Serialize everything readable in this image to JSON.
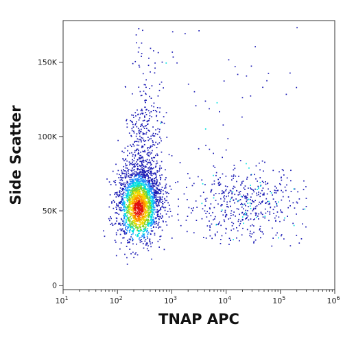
{
  "chart_data": {
    "type": "scatter",
    "subtype": "flow-cytometry density dot plot",
    "xlabel": "TNAP APC",
    "ylabel": "Side Scatter",
    "x_scale": "log",
    "y_scale": "linear",
    "xlim": [
      10,
      1000000
    ],
    "ylim": [
      -3000,
      178000
    ],
    "x_tick_values": [
      10,
      100,
      1000,
      10000,
      100000,
      1000000
    ],
    "x_tick_labels": [
      {
        "base": "10",
        "exp": "1"
      },
      {
        "base": "10",
        "exp": "2"
      },
      {
        "base": "10",
        "exp": "3"
      },
      {
        "base": "10",
        "exp": "4"
      },
      {
        "base": "10",
        "exp": "5"
      },
      {
        "base": "10",
        "exp": "6"
      }
    ],
    "y_tick_values": [
      0,
      50000,
      100000,
      150000
    ],
    "y_tick_labels": [
      "0",
      "50K",
      "100K",
      "150K"
    ],
    "grid": false,
    "legend": "none",
    "density_colors": [
      "#1a1ab4",
      "#1e90ff",
      "#00e0e0",
      "#7cd62a",
      "#f0d800",
      "#ff8c00",
      "#e01010"
    ],
    "populations": [
      {
        "center_x": 250,
        "center_y": 55000,
        "share": 0.84,
        "spread": "dense, extends upward toward 150K"
      },
      {
        "center_x": 20000,
        "center_y": 55000,
        "share": 0.16,
        "spread": "sparse, 1000 to 200000 on x"
      }
    ],
    "peak_density": {
      "x": 240,
      "y": 52000
    }
  }
}
